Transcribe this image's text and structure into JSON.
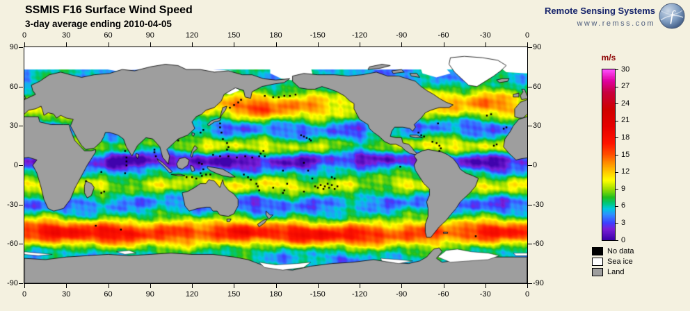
{
  "header": {
    "title": "SSMIS F16 Surface Wind Speed",
    "subtitle": "3-day average ending 2010-04-05"
  },
  "brand": {
    "name": "Remote Sensing Systems",
    "url": "www.remss.com",
    "logo": "remss-globe-icon"
  },
  "axes": {
    "longitude_labels": [
      "0",
      "30",
      "60",
      "90",
      "120",
      "150",
      "180",
      "-150",
      "-120",
      "-90",
      "-60",
      "-30",
      "0"
    ],
    "latitude_labels": [
      "90",
      "60",
      "30",
      "0",
      "-30",
      "-60",
      "-90"
    ]
  },
  "colorbar": {
    "unit": "m/s",
    "min": 0,
    "max": 30,
    "tick_labels": [
      "30",
      "27",
      "24",
      "21",
      "18",
      "15",
      "12",
      "9",
      "6",
      "3",
      "0"
    ],
    "stops": [
      {
        "v": 0,
        "color": "#3a00a8"
      },
      {
        "v": 2,
        "color": "#7a1fd8"
      },
      {
        "v": 3,
        "color": "#3f3fff"
      },
      {
        "v": 4.5,
        "color": "#2f8fff"
      },
      {
        "v": 5.5,
        "color": "#00c8e0"
      },
      {
        "v": 6.5,
        "color": "#00c878"
      },
      {
        "v": 7.5,
        "color": "#1fbf1f"
      },
      {
        "v": 9,
        "color": "#9fdf00"
      },
      {
        "v": 10.5,
        "color": "#ffff00"
      },
      {
        "v": 12,
        "color": "#ffc800"
      },
      {
        "v": 13.5,
        "color": "#ff9000"
      },
      {
        "v": 15,
        "color": "#ff5000"
      },
      {
        "v": 17,
        "color": "#ff1400"
      },
      {
        "v": 20,
        "color": "#e60000"
      },
      {
        "v": 23,
        "color": "#cf0000"
      },
      {
        "v": 26,
        "color": "#c80040"
      },
      {
        "v": 28,
        "color": "#e000a0"
      },
      {
        "v": 30,
        "color": "#ff50ff"
      }
    ]
  },
  "legend": [
    {
      "label": "No data",
      "color": "#000000"
    },
    {
      "label": "Sea ice",
      "color": "#ffffff"
    },
    {
      "label": "Land",
      "color": "#9e9e9e"
    }
  ],
  "colors": {
    "background": "#f4f1e0",
    "land": "#9e9e9e",
    "sea_ice": "#ffffff",
    "no_data": "#000000",
    "coastline": "#000000",
    "brand_text": "#16246b",
    "unit_text": "#8b0000"
  }
}
